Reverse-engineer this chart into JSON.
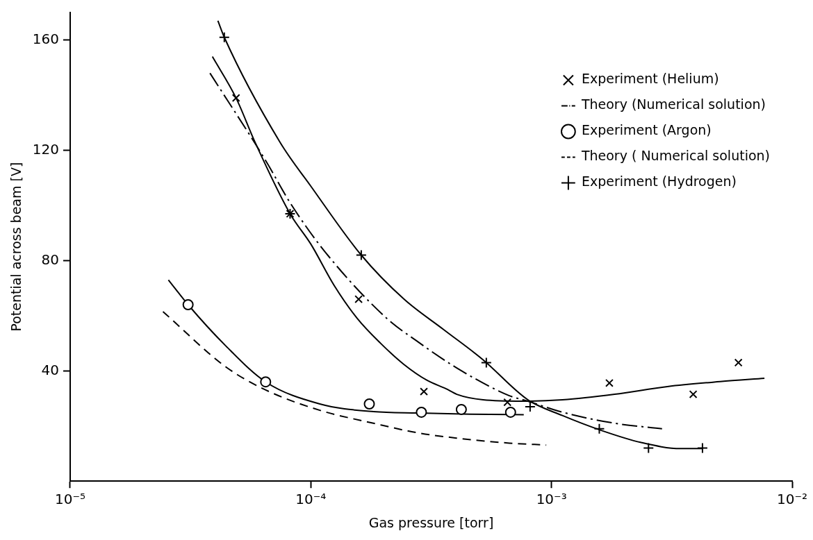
{
  "chart_data": {
    "type": "line",
    "xlabel": "Gas pressure [torr]",
    "ylabel": "Potential across beam [V]",
    "log": "x",
    "grid": false,
    "legend": "top right",
    "xlim": [
      1e-05,
      0.01
    ],
    "xticks": [
      {
        "value": 1e-05,
        "label": "10⁻⁵"
      },
      {
        "value": 0.0001,
        "label": "10⁻⁴"
      },
      {
        "value": 0.001,
        "label": "10⁻³"
      },
      {
        "value": 0.01,
        "label": "10⁻²"
      }
    ],
    "ylim": [
      0,
      170
    ],
    "yticks": [
      40,
      80,
      120,
      160
    ],
    "series": [
      {
        "name": "Experiment (Helium)",
        "type": "scatter",
        "marker": "cross",
        "color": "#000000",
        "x": [
          4.89e-05,
          8.2e-05,
          0.000158,
          0.000295,
          0.000656,
          0.00174,
          0.00388,
          0.00598
        ],
        "values": [
          139,
          97,
          66,
          32.5,
          28.6,
          35.6,
          31.5,
          43
        ]
      },
      {
        "name": "Theory (Numerical solution)",
        "type": "line",
        "line_style": "dashdot",
        "marker": "none",
        "color": "#000000",
        "x": [
          3.81e-05,
          6.52e-05,
          8.2e-05,
          0.000115,
          0.000207,
          0.000274,
          0.000405,
          0.000668,
          0.000798,
          0.00111,
          0.00183,
          0.00288
        ],
        "values": [
          148,
          116,
          101,
          83,
          59,
          51,
          41,
          31,
          29,
          25,
          21,
          19
        ]
      },
      {
        "name": "Experiment (Argon)",
        "type": "scatter",
        "marker": "circle",
        "color": "#000000",
        "x": [
          3.09e-05,
          6.49e-05,
          0.000175,
          0.000288,
          0.000422,
          0.000676
        ],
        "values": [
          64,
          36,
          28,
          25,
          26,
          25
        ]
      },
      {
        "name": "Theory ( Numerical solution)",
        "type": "line",
        "line_style": "dashed",
        "marker": "none",
        "color": "#000000",
        "x": [
          2.43e-05,
          4.44e-05,
          6.52e-05,
          0.000109,
          0.000182,
          0.000279,
          0.000405,
          0.000668,
          0.000951
        ],
        "values": [
          61.5,
          41.4,
          33,
          25.7,
          21,
          17.5,
          15.6,
          13.8,
          13.1
        ]
      },
      {
        "name": "Experiment (Hydrogen)",
        "type": "scatter",
        "marker": "plus",
        "color": "#000000",
        "x": [
          4.37e-05,
          8.2e-05,
          0.000162,
          0.000536,
          0.000815,
          0.00158,
          0.00253,
          0.00424
        ],
        "values": [
          161,
          97,
          82,
          43,
          27,
          19,
          12,
          12
        ]
      },
      {
        "line_style": "solid",
        "marker": "none",
        "color": "#000000",
        "x": [
          3.9e-05,
          4.89e-05,
          5.86e-05,
          8.2e-05,
          0.0001,
          0.000125,
          0.000156,
          0.000195,
          0.000244,
          0.000305,
          0.000365,
          0.000404,
          0.00052,
          0.000759,
          0.00111,
          0.00183,
          0.00303,
          0.00502,
          0.00767
        ],
        "values": [
          154,
          139,
          123,
          97,
          86,
          71,
          59,
          50,
          42.3,
          36.5,
          33.5,
          31.5,
          29.5,
          29,
          29.5,
          31.5,
          34.3,
          36.1,
          37.3
        ]
      },
      {
        "line_style": "solid",
        "marker": "none",
        "color": "#000000",
        "x": [
          2.56e-05,
          3.09e-05,
          4.44e-05,
          6.49e-05,
          0.000109,
          0.000182,
          0.000279,
          0.000458,
          0.000767
        ],
        "values": [
          73,
          64,
          49,
          36,
          28,
          25.2,
          24.7,
          24.3,
          24.1
        ]
      },
      {
        "line_style": "solid",
        "marker": "none",
        "color": "#000000",
        "x": [
          4.11e-05,
          4.37e-05,
          7.44e-05,
          0.0001,
          0.000162,
          0.000244,
          0.000356,
          0.00052,
          0.000798,
          0.00111,
          0.00161,
          0.00236,
          0.00344,
          0.00426
        ],
        "values": [
          167,
          161,
          123,
          107,
          82,
          66,
          55,
          44,
          29.5,
          23.8,
          18.4,
          14,
          11.8,
          11.8
        ]
      }
    ]
  }
}
